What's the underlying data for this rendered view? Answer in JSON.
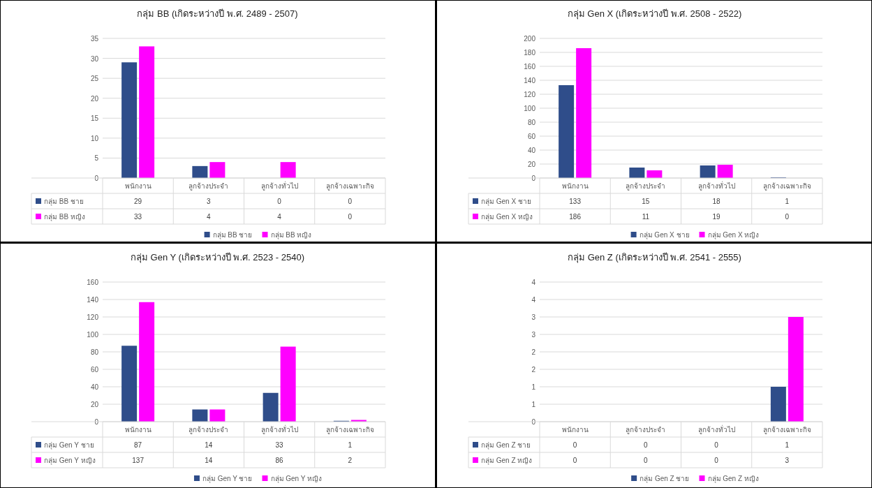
{
  "chart_data": [
    {
      "type": "bar",
      "title": "กลุ่ม BB (เกิดระหว่างปี พ.ศ. 2489 - 2507)",
      "categories": [
        "พนักงาน",
        "ลูกจ้างประจำ",
        "ลูกจ้างทั่วไป",
        "ลูกจ้างเฉพาะกิจ"
      ],
      "series": [
        {
          "name": "กลุ่ม BB ชาย",
          "color": "#2f4d8a",
          "values": [
            29,
            3,
            0,
            0
          ]
        },
        {
          "name": "กลุ่ม BB หญิง",
          "color": "#ff00ff",
          "values": [
            33,
            4,
            4,
            0
          ]
        }
      ],
      "ylim": [
        0,
        35
      ],
      "yticks": [
        0,
        5,
        10,
        15,
        20,
        25,
        30,
        35
      ],
      "grid": "y",
      "legend": "bottom",
      "data_labels": true
    },
    {
      "type": "bar",
      "title": "กลุ่ม Gen X (เกิดระหว่างปี พ.ศ. 2508 - 2522)",
      "categories": [
        "พนักงาน",
        "ลูกจ้างประจำ",
        "ลูกจ้างทั่วไป",
        "ลูกจ้างเฉพาะกิจ"
      ],
      "series": [
        {
          "name": "กลุ่ม Gen X ชาย",
          "color": "#2f4d8a",
          "values": [
            133,
            15,
            18,
            1
          ]
        },
        {
          "name": "กลุ่ม Gen X หญิง",
          "color": "#ff00ff",
          "values": [
            186,
            11,
            19,
            0
          ]
        }
      ],
      "ylim": [
        0,
        200
      ],
      "yticks": [
        0,
        20,
        40,
        60,
        80,
        100,
        120,
        140,
        160,
        180,
        200
      ],
      "grid": "y",
      "legend": "bottom",
      "data_labels": true
    },
    {
      "type": "bar",
      "title": "กลุ่ม Gen Y (เกิดระหว่างปี พ.ศ. 2523 - 2540)",
      "categories": [
        "พนักงาน",
        "ลูกจ้างประจำ",
        "ลูกจ้างทั่วไป",
        "ลูกจ้างเฉพาะกิจ"
      ],
      "series": [
        {
          "name": "กลุ่ม Gen Y ชาย",
          "color": "#2f4d8a",
          "values": [
            87,
            14,
            33,
            1
          ]
        },
        {
          "name": "กลุ่ม Gen Y หญิง",
          "color": "#ff00ff",
          "values": [
            137,
            14,
            86,
            2
          ]
        }
      ],
      "ylim": [
        0,
        160
      ],
      "yticks": [
        0,
        20,
        40,
        60,
        80,
        100,
        120,
        140,
        160
      ],
      "grid": "y",
      "legend": "bottom",
      "data_labels": true
    },
    {
      "type": "bar",
      "title": "กลุ่ม Gen Z (เกิดระหว่างปี พ.ศ. 2541 - 2555)",
      "categories": [
        "พนักงาน",
        "ลูกจ้างประจำ",
        "ลูกจ้างทั่วไป",
        "ลูกจ้างเฉพาะกิจ"
      ],
      "series": [
        {
          "name": "กลุ่ม Gen Z ชาย",
          "color": "#2f4d8a",
          "values": [
            0,
            0,
            0,
            1
          ]
        },
        {
          "name": "กลุ่ม Gen Z หญิง",
          "color": "#ff00ff",
          "values": [
            0,
            0,
            0,
            3
          ]
        }
      ],
      "ylim": [
        0,
        4
      ],
      "yticks": [
        0,
        {
          "value": 0.5,
          "label": "1"
        },
        1,
        {
          "value": 1.5,
          "label": "2"
        },
        2,
        {
          "value": 2.5,
          "label": "3"
        },
        3,
        {
          "value": 3.5,
          "label": "4"
        },
        4
      ],
      "grid": "y",
      "legend": "bottom",
      "data_labels": true
    }
  ]
}
